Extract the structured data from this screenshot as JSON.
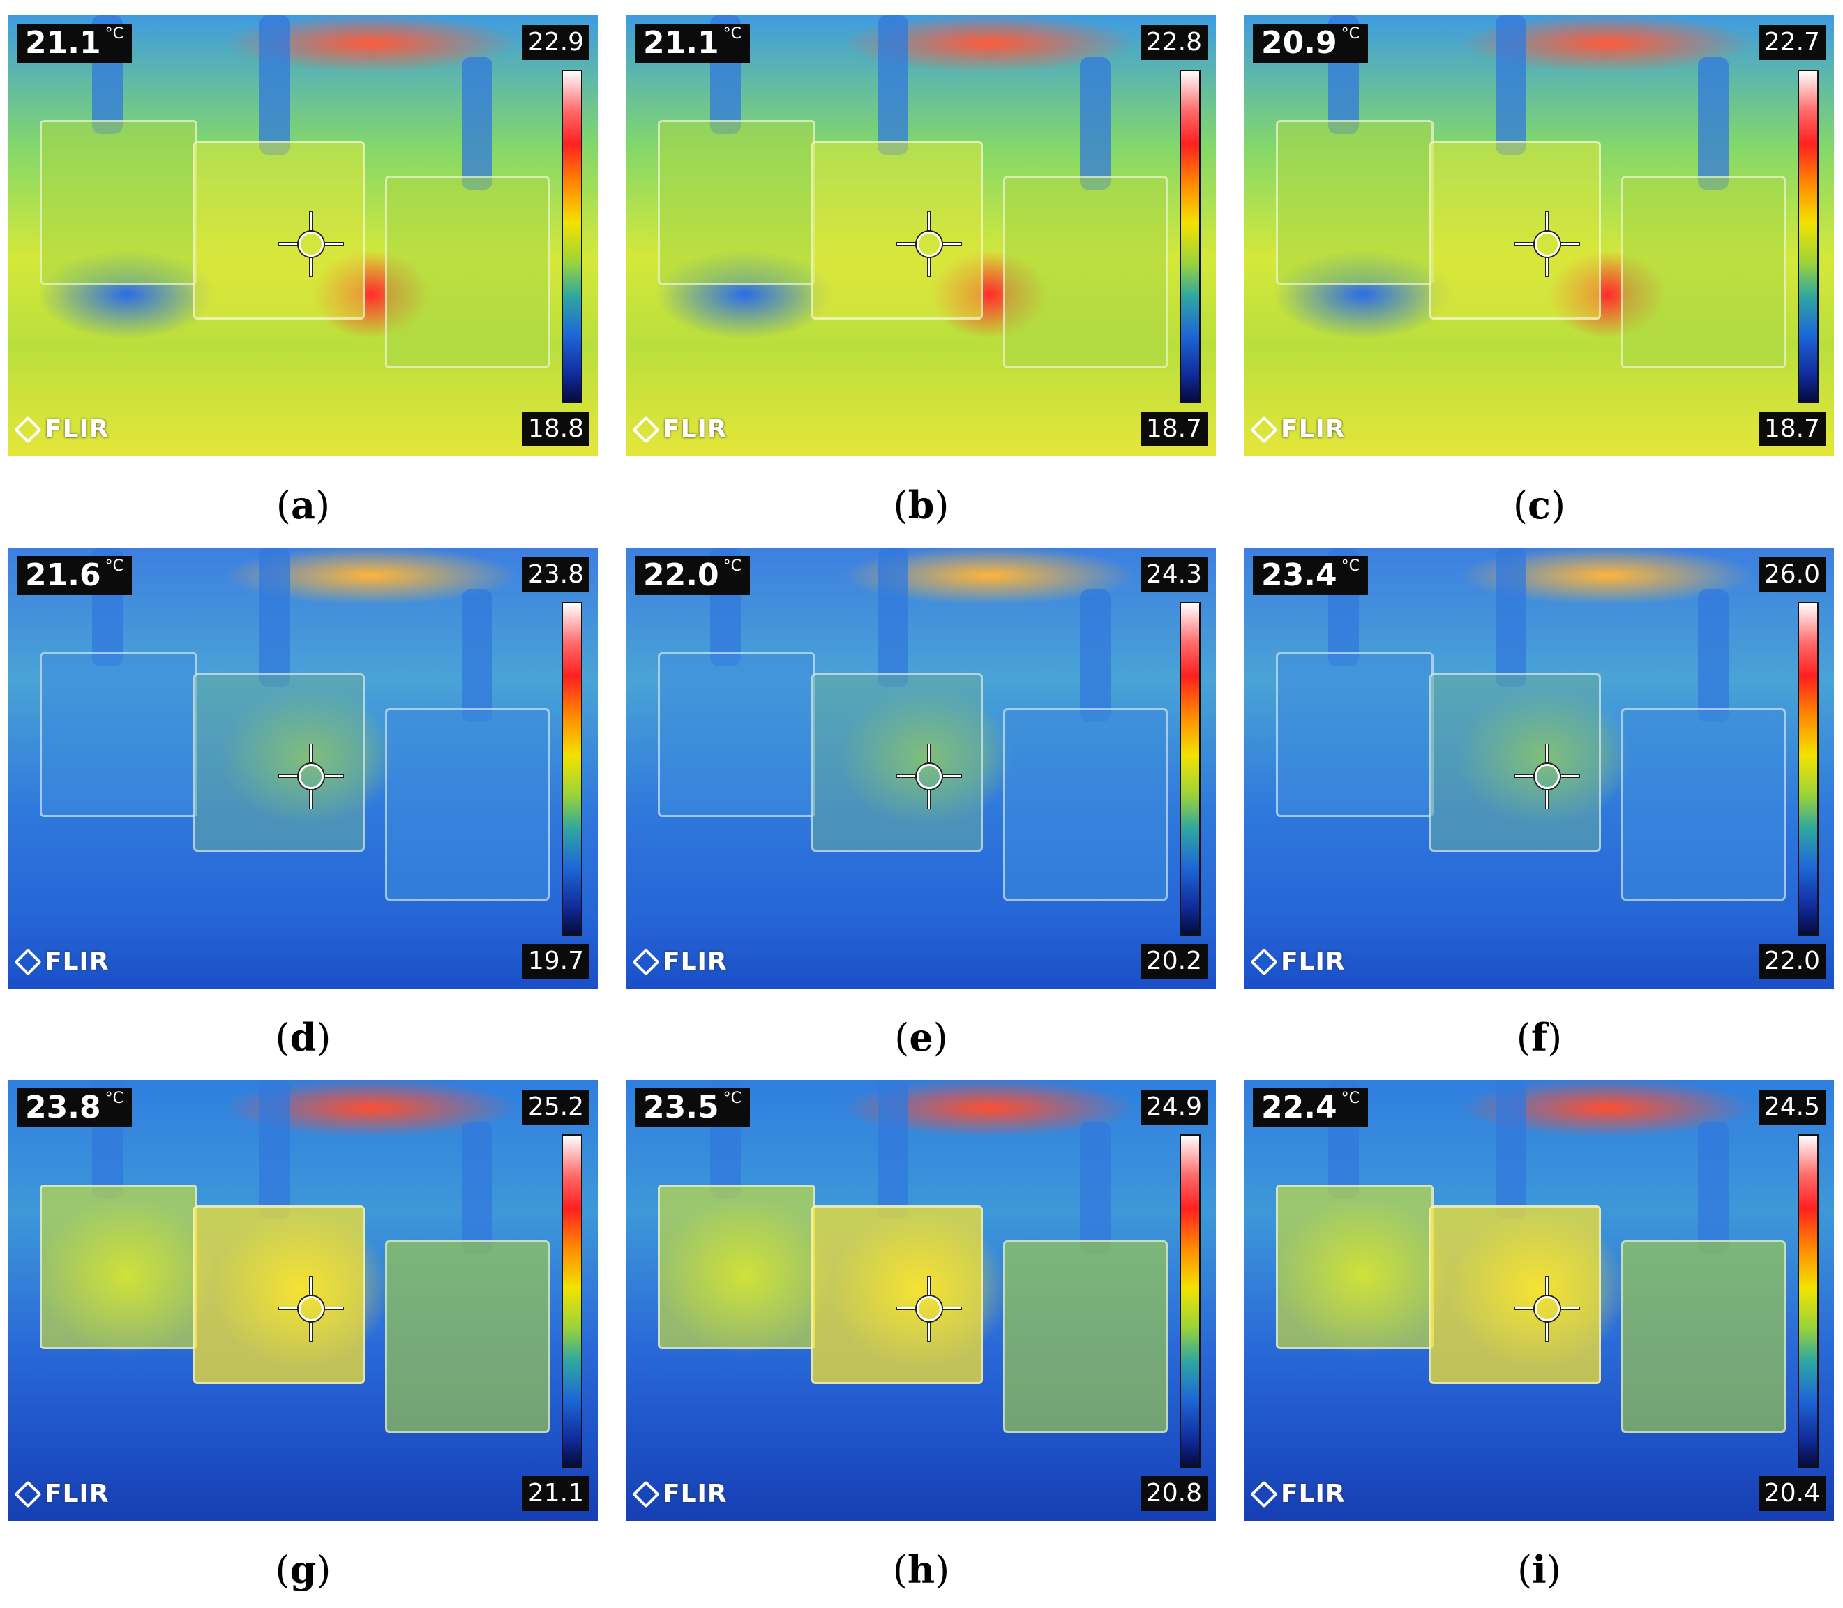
{
  "unit": "°C",
  "logo_text": "FLIR",
  "panels": [
    {
      "label": "a",
      "spot": "21.1",
      "max": "22.9",
      "min": "18.8"
    },
    {
      "label": "b",
      "spot": "21.1",
      "max": "22.8",
      "min": "18.7"
    },
    {
      "label": "c",
      "spot": "20.9",
      "max": "22.7",
      "min": "18.7"
    },
    {
      "label": "d",
      "spot": "21.6",
      "max": "23.8",
      "min": "19.7"
    },
    {
      "label": "e",
      "spot": "22.0",
      "max": "24.3",
      "min": "20.2"
    },
    {
      "label": "f",
      "spot": "23.4",
      "max": "26.0",
      "min": "22.0"
    },
    {
      "label": "g",
      "spot": "23.8",
      "max": "25.2",
      "min": "21.1"
    },
    {
      "label": "h",
      "spot": "23.5",
      "max": "24.9",
      "min": "20.8"
    },
    {
      "label": "i",
      "spot": "22.4",
      "max": "24.5",
      "min": "20.4"
    }
  ]
}
